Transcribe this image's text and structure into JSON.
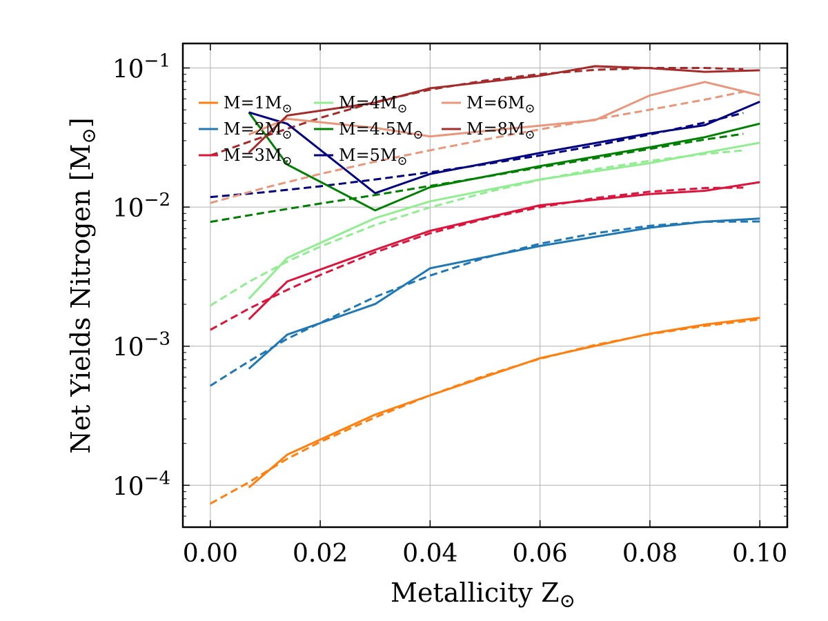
{
  "chart_data": {
    "type": "line",
    "xlabel": "Metallicity Z",
    "xlabel_sub": "⊙",
    "ylabel": "Net Yields Nitrogen [M",
    "ylabel_sub": "⊙",
    "ylabel_close": "]",
    "xlim": [
      -0.005,
      0.105
    ],
    "ylim": [
      5e-05,
      0.15
    ],
    "yscale": "log",
    "grid": true,
    "legend_position": "upper-left",
    "legend_ncol": 3,
    "x_ticks": [
      {
        "value": 0.0,
        "label": "0.00"
      },
      {
        "value": 0.02,
        "label": "0.02"
      },
      {
        "value": 0.04,
        "label": "0.04"
      },
      {
        "value": 0.06,
        "label": "0.06"
      },
      {
        "value": 0.08,
        "label": "0.08"
      },
      {
        "value": 0.1,
        "label": "0.10"
      }
    ],
    "y_ticks": [
      {
        "value": 0.0001,
        "base": "10",
        "exp": "−4"
      },
      {
        "value": 0.001,
        "base": "10",
        "exp": "−3"
      },
      {
        "value": 0.01,
        "base": "10",
        "exp": "−2"
      },
      {
        "value": 0.1,
        "base": "10",
        "exp": "−1"
      }
    ],
    "series": [
      {
        "name": "M=1M",
        "sub": "⊙",
        "color": "#ff7f0e",
        "x": [
          0.007,
          0.014,
          0.03,
          0.04,
          0.06,
          0.08,
          0.09,
          0.1
        ],
        "y": [
          9.63e-05,
          0.000166,
          0.000322,
          0.000443,
          0.00082,
          0.00123,
          0.00143,
          0.0016
        ],
        "fit_x": [
          0.0,
          0.007,
          0.014,
          0.02,
          0.03,
          0.04,
          0.05,
          0.06,
          0.07,
          0.08,
          0.09,
          0.1
        ],
        "fit_y": [
          7.37e-05,
          0.000105,
          0.000155,
          0.000205,
          0.000308,
          0.000444,
          0.000614,
          0.000812,
          0.00102,
          0.00122,
          0.0014,
          0.00156
        ]
      },
      {
        "name": "M=2M",
        "sub": "⊙",
        "color": "#1f77b4",
        "x": [
          0.007,
          0.014,
          0.03,
          0.04,
          0.06,
          0.08,
          0.09,
          0.1
        ],
        "y": [
          0.000688,
          0.00121,
          0.00201,
          0.00363,
          0.00525,
          0.00711,
          0.00785,
          0.00827
        ],
        "fit_x": [
          0.0,
          0.007,
          0.014,
          0.02,
          0.03,
          0.04,
          0.05,
          0.06,
          0.07,
          0.08,
          0.09,
          0.1
        ],
        "fit_y": [
          0.000519,
          0.000777,
          0.00113,
          0.00147,
          0.00226,
          0.00322,
          0.00432,
          0.00545,
          0.00648,
          0.00734,
          0.00784,
          0.00788
        ]
      },
      {
        "name": "M=3M",
        "sub": "⊙",
        "color": "#dc143c",
        "x": [
          0.007,
          0.014,
          0.03,
          0.04,
          0.06,
          0.08,
          0.09,
          0.1
        ],
        "y": [
          0.00156,
          0.00292,
          0.00493,
          0.00675,
          0.0103,
          0.0124,
          0.0131,
          0.0151
        ],
        "fit_x": [
          0.0,
          0.007,
          0.014,
          0.02,
          0.03,
          0.04,
          0.05,
          0.06,
          0.07,
          0.08,
          0.09,
          0.097
        ],
        "fit_y": [
          0.00131,
          0.00186,
          0.00254,
          0.00325,
          0.00472,
          0.00648,
          0.00823,
          0.00998,
          0.0116,
          0.0129,
          0.0137,
          0.0138
        ]
      },
      {
        "name": "M=4M",
        "sub": "⊙",
        "color": "#90ee90",
        "x": [
          0.007,
          0.014,
          0.03,
          0.04,
          0.06,
          0.08,
          0.09,
          0.1
        ],
        "y": [
          0.00219,
          0.00431,
          0.00833,
          0.011,
          0.0158,
          0.0207,
          0.0246,
          0.029
        ],
        "fit_x": [
          0.0,
          0.007,
          0.014,
          0.02,
          0.03,
          0.04,
          0.05,
          0.06,
          0.07,
          0.08,
          0.09,
          0.097
        ],
        "fit_y": [
          0.00196,
          0.0029,
          0.00406,
          0.00519,
          0.00744,
          0.00995,
          0.0127,
          0.0157,
          0.0187,
          0.0215,
          0.0241,
          0.0255
        ]
      },
      {
        "name": "M=4.5M",
        "sub": "⊙",
        "color": "#008000",
        "x": [
          0.007,
          0.014,
          0.03,
          0.04,
          0.06,
          0.08,
          0.09,
          0.1
        ],
        "y": [
          0.048,
          0.0202,
          0.00947,
          0.0139,
          0.0197,
          0.0269,
          0.0318,
          0.0398
        ],
        "fit_x": [
          0.0,
          0.01,
          0.02,
          0.03,
          0.04,
          0.05,
          0.06,
          0.07,
          0.08,
          0.09,
          0.097
        ],
        "fit_y": [
          0.00782,
          0.00914,
          0.0106,
          0.0122,
          0.0142,
          0.0165,
          0.0193,
          0.0224,
          0.0262,
          0.0306,
          0.0336
        ]
      },
      {
        "name": "M=5M",
        "sub": "⊙",
        "color": "#000080",
        "x": [
          0.007,
          0.014,
          0.03,
          0.04,
          0.06,
          0.08,
          0.09,
          0.1
        ],
        "y": [
          0.048,
          0.0397,
          0.0126,
          0.0173,
          0.0245,
          0.0339,
          0.0388,
          0.0572
        ],
        "fit_x": [
          0.0,
          0.01,
          0.02,
          0.03,
          0.04,
          0.05,
          0.06,
          0.07,
          0.08,
          0.09,
          0.097
        ],
        "fit_y": [
          0.0118,
          0.0128,
          0.0141,
          0.0158,
          0.0178,
          0.0203,
          0.0235,
          0.0276,
          0.0332,
          0.0405,
          0.0475
        ]
      },
      {
        "name": "M=6M",
        "sub": "⊙",
        "color": "#e9967a",
        "x": [
          0.007,
          0.014,
          0.03,
          0.04,
          0.06,
          0.07,
          0.08,
          0.09,
          0.1
        ],
        "y": [
          0.0332,
          0.0431,
          0.0371,
          0.0322,
          0.0385,
          0.0421,
          0.0635,
          0.0793,
          0.0636
        ],
        "fit_x": [
          0.0,
          0.01,
          0.02,
          0.03,
          0.04,
          0.05,
          0.06,
          0.07,
          0.08,
          0.09,
          0.097
        ],
        "fit_y": [
          0.0107,
          0.0138,
          0.0173,
          0.0212,
          0.0256,
          0.0306,
          0.0362,
          0.0426,
          0.0501,
          0.0592,
          0.0675
        ]
      },
      {
        "name": "M=8M",
        "sub": "⊙",
        "color": "#a52a2a",
        "x": [
          0.007,
          0.014,
          0.03,
          0.04,
          0.06,
          0.07,
          0.08,
          0.09,
          0.1
        ],
        "y": [
          0.0246,
          0.0455,
          0.0563,
          0.0715,
          0.0879,
          0.103,
          0.0998,
          0.0938,
          0.0962
        ],
        "fit_x": [
          0.0,
          0.01,
          0.02,
          0.03,
          0.04,
          0.05,
          0.06,
          0.07,
          0.08,
          0.09,
          0.097
        ],
        "fit_y": [
          0.0235,
          0.0324,
          0.0438,
          0.0569,
          0.0699,
          0.0812,
          0.0903,
          0.0968,
          0.1,
          0.1,
          0.098
        ]
      }
    ]
  }
}
